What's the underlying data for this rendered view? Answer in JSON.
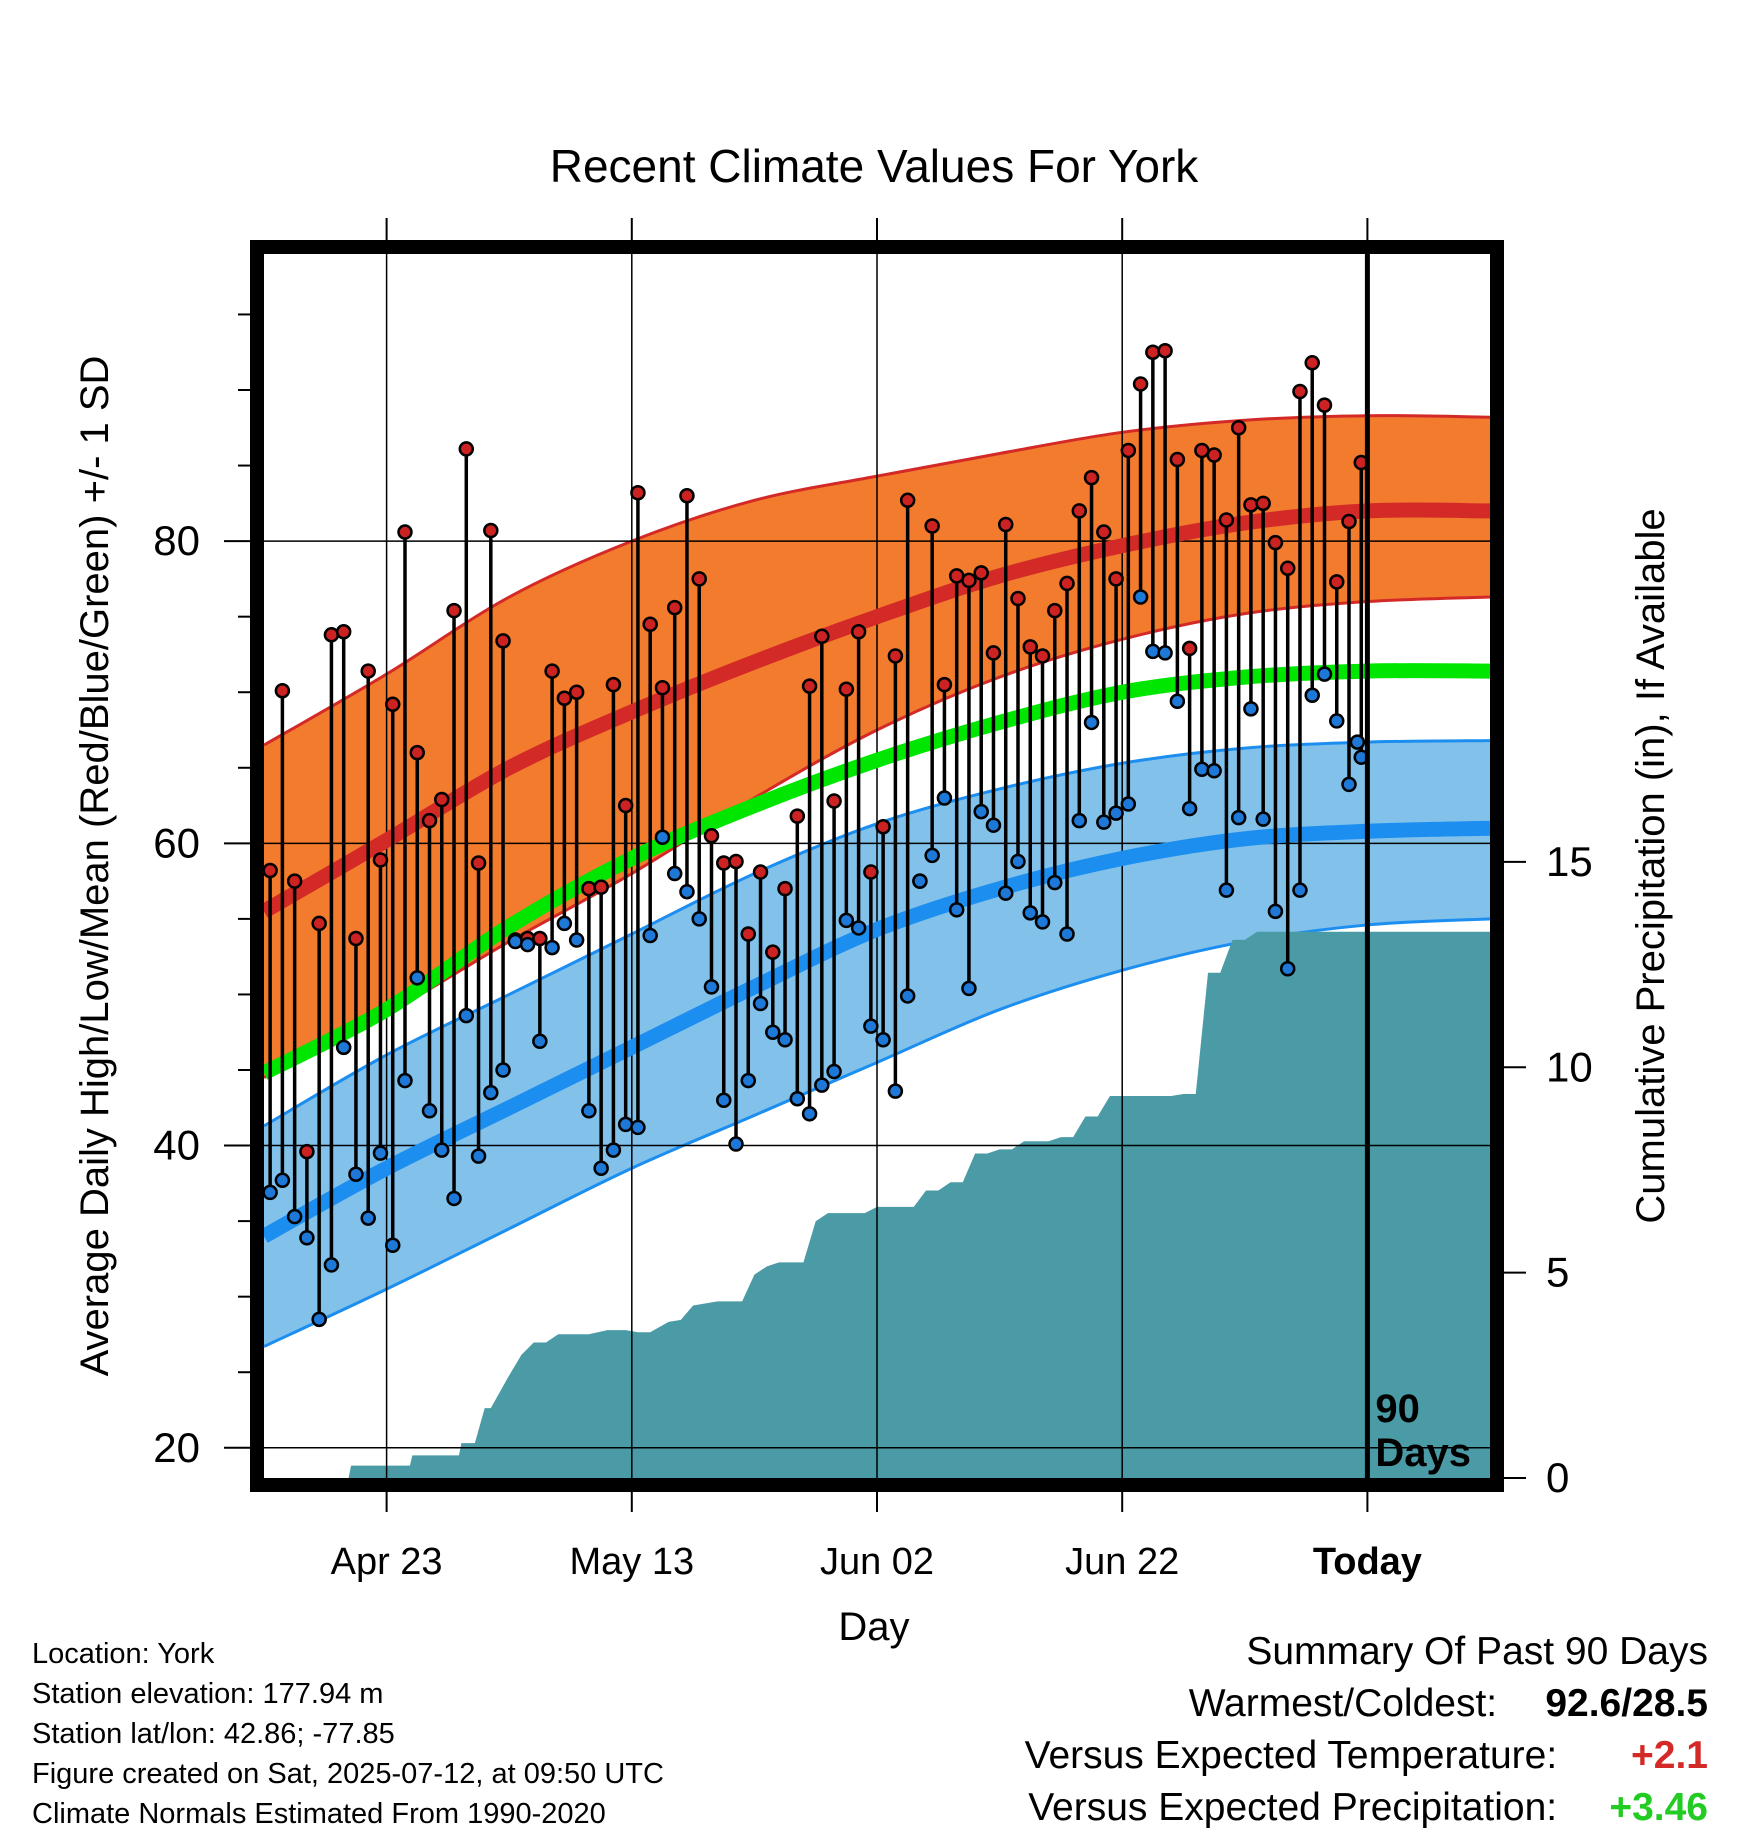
{
  "chart_data": {
    "type": "line",
    "title": "Recent Climate Values For York",
    "xlabel": "Day",
    "ylabel": "Average Daily High/Low/Mean (Red/Blue/Green) +/- 1 SD",
    "y2label": "Cumulative Precipitation (in), If Available",
    "ylim": [
      18,
      99
    ],
    "y_ticks": [
      20,
      40,
      60,
      80
    ],
    "y2lim": [
      0,
      29.8
    ],
    "y2_ticks": [
      0,
      5,
      10,
      15
    ],
    "x_tick_labels": [
      "Apr 23",
      "May 13",
      "Jun 02",
      "Jun 22",
      "Today"
    ],
    "x_tick_days": [
      10,
      30,
      50,
      70,
      90
    ],
    "x_range_days": [
      0,
      100
    ],
    "marker_label": [
      "90",
      "Days"
    ],
    "colors": {
      "high_normal": "#d42a27",
      "high_band": "#f27b2d",
      "low_normal": "#1b8ef0",
      "low_band": "#82c1ea",
      "mean_normal": "#00e600",
      "precip": "#4a9ba5",
      "high_dot": "#cc2222",
      "low_dot": "#1e78d8"
    },
    "normals": {
      "days": [
        0,
        10,
        20,
        30,
        40,
        50,
        60,
        70,
        80,
        90,
        100
      ],
      "high_mean": [
        55.5,
        60.2,
        65.0,
        68.7,
        72.0,
        75.0,
        77.7,
        79.7,
        81.2,
        82.0,
        82.0
      ],
      "high_sd_upper": [
        66.5,
        71.2,
        76.3,
        80.0,
        82.7,
        84.3,
        85.8,
        87.2,
        88.0,
        88.3,
        88.2
      ],
      "high_sd_lower": [
        44.5,
        48.7,
        53.5,
        58.0,
        63.0,
        67.5,
        71.0,
        73.5,
        75.2,
        76.0,
        76.3
      ],
      "mean": [
        44.8,
        49.0,
        54.5,
        59.0,
        62.5,
        65.5,
        68.0,
        70.0,
        71.0,
        71.4,
        71.4
      ],
      "low_mean": [
        34.0,
        38.5,
        42.5,
        46.5,
        50.5,
        54.3,
        57.0,
        59.0,
        60.3,
        60.8,
        61.0
      ],
      "low_sd_upper": [
        41.3,
        46.0,
        50.0,
        54.0,
        58.0,
        61.3,
        63.6,
        65.3,
        66.3,
        66.7,
        66.8
      ],
      "low_sd_lower": [
        26.7,
        30.5,
        34.5,
        38.5,
        42.0,
        45.5,
        49.0,
        51.6,
        53.5,
        54.6,
        55.0
      ]
    },
    "daily": {
      "days": [
        0,
        1,
        2,
        3,
        4,
        5,
        6,
        7,
        8,
        9,
        10,
        11,
        12,
        13,
        14,
        15,
        16,
        17,
        18,
        19,
        20,
        21,
        22,
        23,
        24,
        25,
        26,
        27,
        28,
        29,
        30,
        31,
        32,
        33,
        34,
        35,
        36,
        37,
        38,
        39,
        40,
        41,
        42,
        43,
        44,
        45,
        46,
        47,
        48,
        49,
        50,
        51,
        52,
        53,
        54,
        55,
        56,
        57,
        58,
        59,
        60,
        61,
        62,
        63,
        64,
        65,
        66,
        67,
        68,
        69,
        70,
        71,
        72,
        73,
        74,
        75,
        76,
        77,
        78,
        79,
        80,
        81,
        82,
        83,
        84,
        85,
        86,
        87,
        88,
        89
      ],
      "high": [
        58.2,
        70.1,
        57.5,
        39.6,
        54.7,
        73.8,
        74.0,
        53.7,
        71.4,
        58.9,
        69.2,
        80.6,
        66.0,
        61.5,
        62.9,
        75.4,
        86.1,
        58.7,
        80.7,
        73.4,
        53.6,
        53.7,
        53.7,
        71.4,
        69.6,
        70.0,
        57.0,
        57.1,
        70.5,
        62.5,
        83.2,
        74.5,
        70.3,
        75.6,
        83.0,
        77.5,
        60.5,
        58.7,
        58.8,
        54.0,
        58.1,
        52.8,
        57.0,
        61.8,
        70.4,
        73.7,
        62.8,
        70.2,
        74.0,
        58.1,
        61.1,
        72.4,
        82.7,
        57.5,
        81.0,
        70.5,
        77.7,
        77.4,
        77.9,
        72.6,
        81.1,
        76.2,
        73.0,
        72.4,
        75.4,
        77.2,
        82.0,
        84.2,
        80.6,
        77.5,
        86.0,
        90.4,
        92.5,
        92.6,
        85.4,
        72.9,
        86.0,
        85.7,
        81.4,
        87.5,
        82.4,
        82.5,
        79.9,
        78.2,
        89.9,
        91.8,
        89.0,
        77.3,
        81.3,
        85.2
      ],
      "low": [
        36.9,
        37.7,
        35.3,
        33.9,
        28.5,
        32.1,
        46.5,
        38.1,
        35.2,
        39.5,
        33.4,
        44.3,
        51.1,
        42.3,
        39.7,
        36.5,
        48.6,
        39.3,
        43.5,
        45.0,
        53.5,
        53.3,
        46.9,
        53.1,
        54.7,
        53.6,
        42.3,
        38.5,
        39.7,
        41.4,
        41.2,
        53.9,
        60.4,
        58.0,
        56.8,
        55.0,
        50.5,
        43.0,
        40.1,
        44.3,
        49.4,
        47.5,
        47.0,
        43.1,
        42.1,
        44.0,
        44.9,
        54.9,
        54.4,
        47.9,
        47.0,
        43.6,
        49.9,
        57.5,
        59.2,
        63.0,
        55.6,
        50.4,
        62.1,
        61.2,
        56.7,
        58.8,
        55.4,
        54.8,
        57.4,
        54.0,
        61.5,
        68.0,
        61.4,
        62.0,
        62.6,
        76.3,
        72.7,
        72.6,
        69.4,
        62.3,
        64.9,
        64.8,
        56.9,
        61.7,
        68.9,
        61.6,
        55.5,
        51.7,
        56.9,
        69.8,
        71.2,
        68.1,
        63.9,
        65.7
      ],
      "today_low": 66.7
    },
    "precip_cumulative": {
      "days": [
        0,
        6.9,
        7.1,
        11.9,
        12.1,
        15.9,
        16.1,
        17.2,
        18.0,
        18.5,
        20.0,
        21.0,
        22.0,
        23.0,
        24.0,
        26.5,
        28.0,
        29.5,
        30.5,
        31.5,
        33.0,
        34.0,
        35.0,
        37.0,
        38.0,
        39.0,
        40.0,
        41.0,
        42.0,
        43.0,
        44.0,
        45.0,
        46.0,
        47.0,
        48.0,
        49.0,
        50.0,
        51.0,
        52.0,
        53.0,
        54.0,
        55.0,
        56.0,
        57.0,
        58.0,
        59.0,
        60.0,
        61.0,
        62.0,
        63.0,
        64.0,
        65.0,
        66.0,
        67.0,
        68.0,
        69.0,
        70.0,
        71.0,
        72.0,
        73.0,
        74.0,
        75.0,
        76.0,
        77.0,
        78.0,
        79.0,
        80.0,
        81.0,
        85.0,
        90.0,
        100.0
      ],
      "inches": [
        0,
        0,
        0.3,
        0.3,
        0.55,
        0.55,
        0.85,
        0.85,
        1.7,
        1.7,
        2.5,
        3.0,
        3.3,
        3.3,
        3.5,
        3.5,
        3.6,
        3.6,
        3.55,
        3.55,
        3.8,
        3.85,
        4.2,
        4.3,
        4.3,
        4.3,
        4.95,
        5.15,
        5.25,
        5.25,
        5.25,
        6.25,
        6.45,
        6.45,
        6.45,
        6.45,
        6.6,
        6.6,
        6.6,
        6.6,
        7.0,
        7.0,
        7.2,
        7.2,
        7.9,
        7.9,
        8.0,
        8.0,
        8.2,
        8.2,
        8.2,
        8.3,
        8.3,
        8.8,
        8.8,
        9.3,
        9.3,
        9.3,
        9.3,
        9.3,
        9.3,
        9.35,
        9.35,
        12.3,
        12.3,
        13.1,
        13.1,
        13.3,
        13.3,
        13.3,
        13.3
      ]
    }
  },
  "labels": {
    "location": "Location: York",
    "elevation": "Station elevation: 177.94 m",
    "latlon": "Station lat/lon: 42.86; -77.85",
    "created": "Figure created on Sat, 2025-07-12, at 09:50 UTC",
    "normals": "Climate Normals Estimated From 1990-2020"
  },
  "summary": {
    "title": "Summary Of Past 90 Days",
    "warm_cold_label": "Warmest/Coldest:",
    "warm_cold_value": "92.6/28.5",
    "temp_label": "Versus Expected Temperature:",
    "temp_value": "+2.1",
    "temp_color": "#d42a27",
    "precip_label": "Versus Expected Precipitation:",
    "precip_value": "+3.46",
    "precip_color": "#22cc22"
  }
}
